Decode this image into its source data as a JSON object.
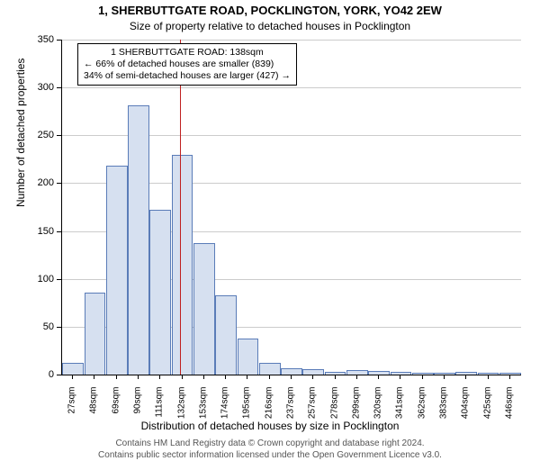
{
  "title": "1, SHERBUTTGATE ROAD, POCKLINGTON, YORK, YO42 2EW",
  "subtitle": "Size of property relative to detached houses in Pocklington",
  "chart": {
    "type": "histogram",
    "xlabel": "Distribution of detached houses by size in Pocklington",
    "ylabel": "Number of detached properties",
    "ylim": [
      0,
      350
    ],
    "ytick_step": 50,
    "bar_color": "#d6e0f0",
    "bar_border": "#5a7cb8",
    "grid_color": "#cccccc",
    "background_color": "#ffffff",
    "xticks": [
      "27sqm",
      "48sqm",
      "69sqm",
      "90sqm",
      "111sqm",
      "132sqm",
      "153sqm",
      "174sqm",
      "195sqm",
      "216sqm",
      "237sqm",
      "257sqm",
      "278sqm",
      "299sqm",
      "320sqm",
      "341sqm",
      "362sqm",
      "383sqm",
      "404sqm",
      "425sqm",
      "446sqm"
    ],
    "values": [
      12,
      86,
      218,
      281,
      172,
      230,
      137,
      83,
      38,
      12,
      7,
      6,
      3,
      5,
      4,
      3,
      2,
      2,
      3,
      2,
      2
    ],
    "ref_line": {
      "x_index": 5.4,
      "color": "#c02020",
      "label_lines": [
        "1 SHERBUTTGATE ROAD: 138sqm",
        "← 66% of detached houses are smaller (839)",
        "34% of semi-detached houses are larger (427) →"
      ]
    }
  },
  "footer": {
    "line1": "Contains HM Land Registry data © Crown copyright and database right 2024.",
    "line2": "Contains public sector information licensed under the Open Government Licence v3.0."
  }
}
